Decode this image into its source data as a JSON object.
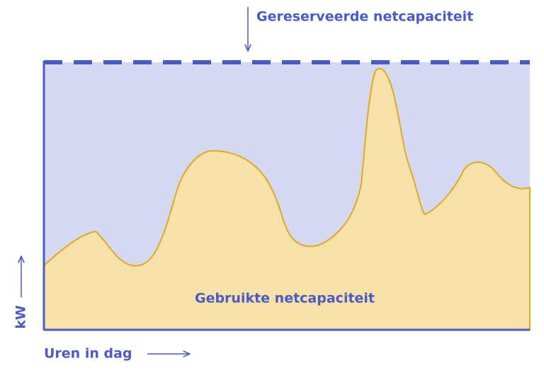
{
  "labels": {
    "reserved": "Gereserveerde netcapaciteit",
    "used": "Gebruikte netcapaciteit",
    "y_axis": "kW",
    "x_axis": "Uren in dag"
  }
}
